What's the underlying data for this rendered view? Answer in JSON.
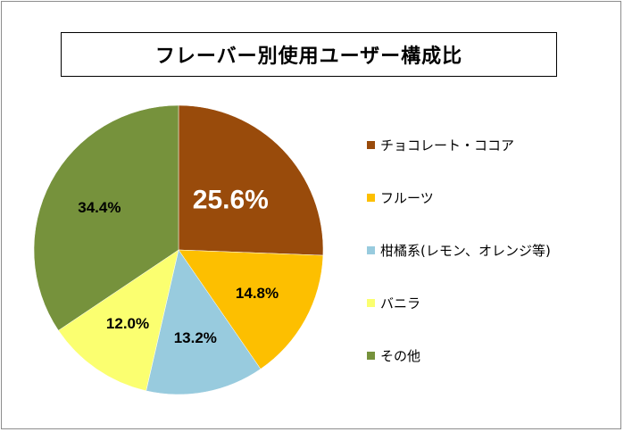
{
  "chart_data": {
    "type": "pie",
    "title": "フレーバー別使用ユーザー構成比",
    "categories": [
      "チョコレート・ココア",
      "フルーツ",
      "柑橘系(レモン、オレンジ等)",
      "バニラ",
      "その他"
    ],
    "values": [
      25.6,
      14.8,
      13.2,
      12.0,
      34.4
    ],
    "data_labels": [
      "25.6%",
      "14.8%",
      "13.2%",
      "12.0%",
      "34.4%"
    ],
    "colors": [
      "#994b0b",
      "#fdbf00",
      "#98cbde",
      "#fbff70",
      "#76923c"
    ],
    "label_colors": [
      "#ffffff",
      "#000000",
      "#000000",
      "#000000",
      "#000000"
    ],
    "legend_position": "right",
    "start_angle_deg": 0,
    "direction": "clockwise"
  }
}
